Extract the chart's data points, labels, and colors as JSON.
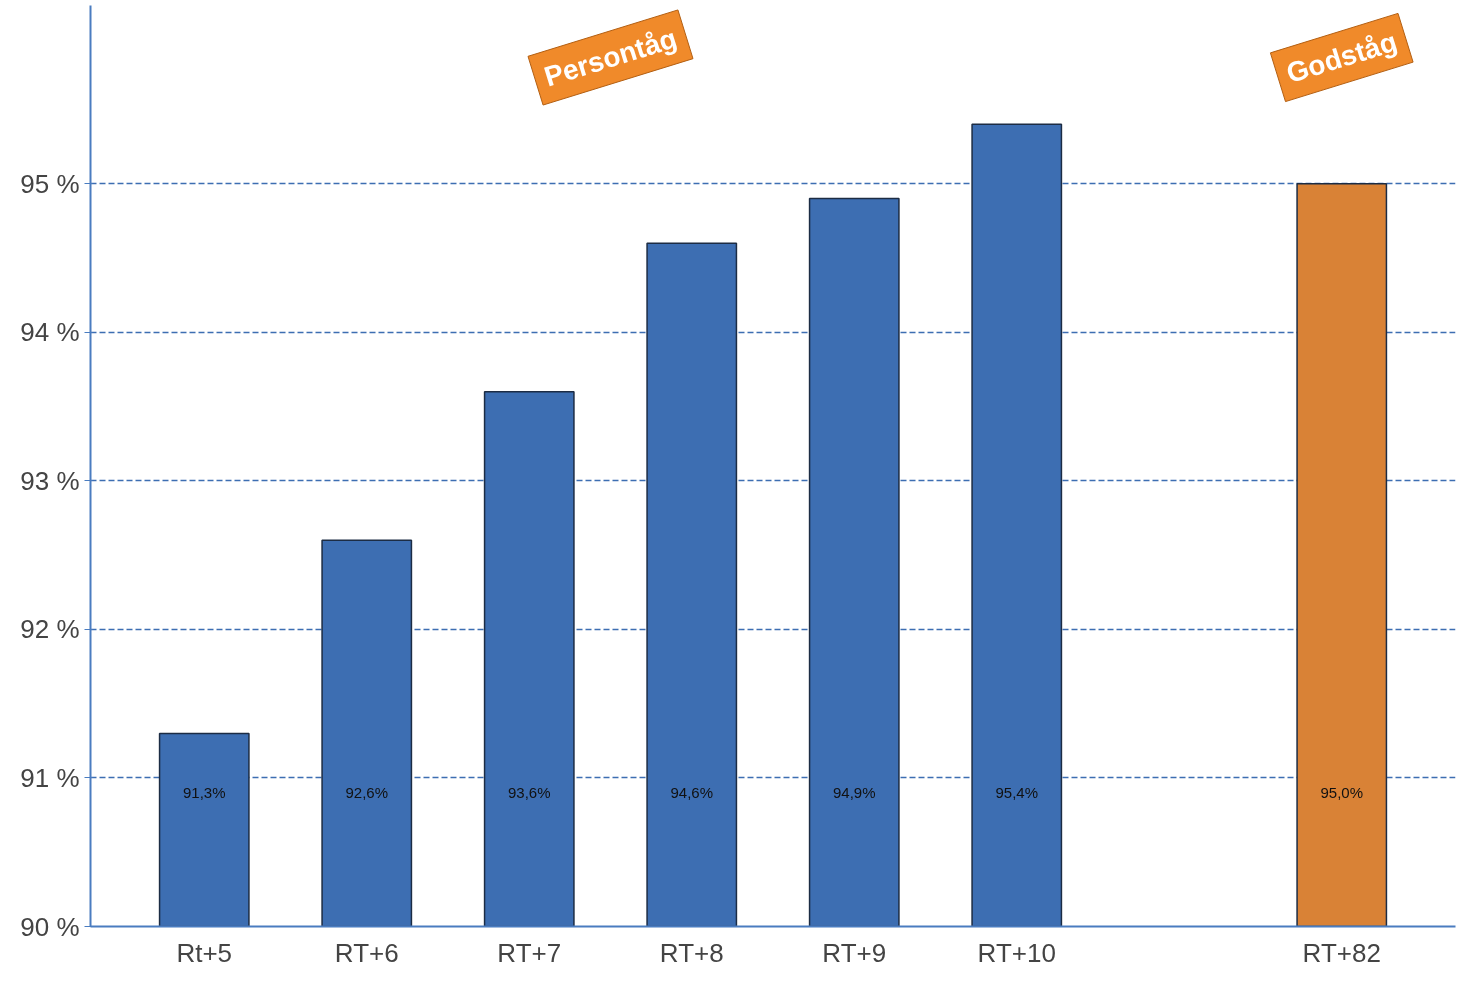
{
  "chart_data": {
    "type": "bar",
    "categories": [
      "Rt+5",
      "RT+6",
      "RT+7",
      "RT+8",
      "RT+9",
      "RT+10",
      null,
      "RT+82"
    ],
    "values": [
      91.3,
      92.6,
      93.6,
      94.6,
      94.9,
      95.4,
      null,
      95.0
    ],
    "colors": [
      "#3d6eb2",
      "#3d6eb2",
      "#3d6eb2",
      "#3d6eb2",
      "#3d6eb2",
      "#3d6eb2",
      "#ffffff",
      "#d98236"
    ],
    "value_labels": [
      "91,3%",
      "92,6%",
      "93,6%",
      "94,6%",
      "94,9%",
      "95,4%",
      null,
      "95,0%"
    ],
    "ylim": [
      90,
      96.2
    ],
    "yticks": [
      {
        "value": 90,
        "label": "90 %"
      },
      {
        "value": 91,
        "label": "91 %"
      },
      {
        "value": 92,
        "label": "92 %"
      },
      {
        "value": 93,
        "label": "93 %"
      },
      {
        "value": 94,
        "label": "94 %"
      },
      {
        "value": 95,
        "label": "95 %"
      }
    ],
    "grid": "y",
    "annotations": [
      "Persontåg",
      "Godståg"
    ]
  }
}
